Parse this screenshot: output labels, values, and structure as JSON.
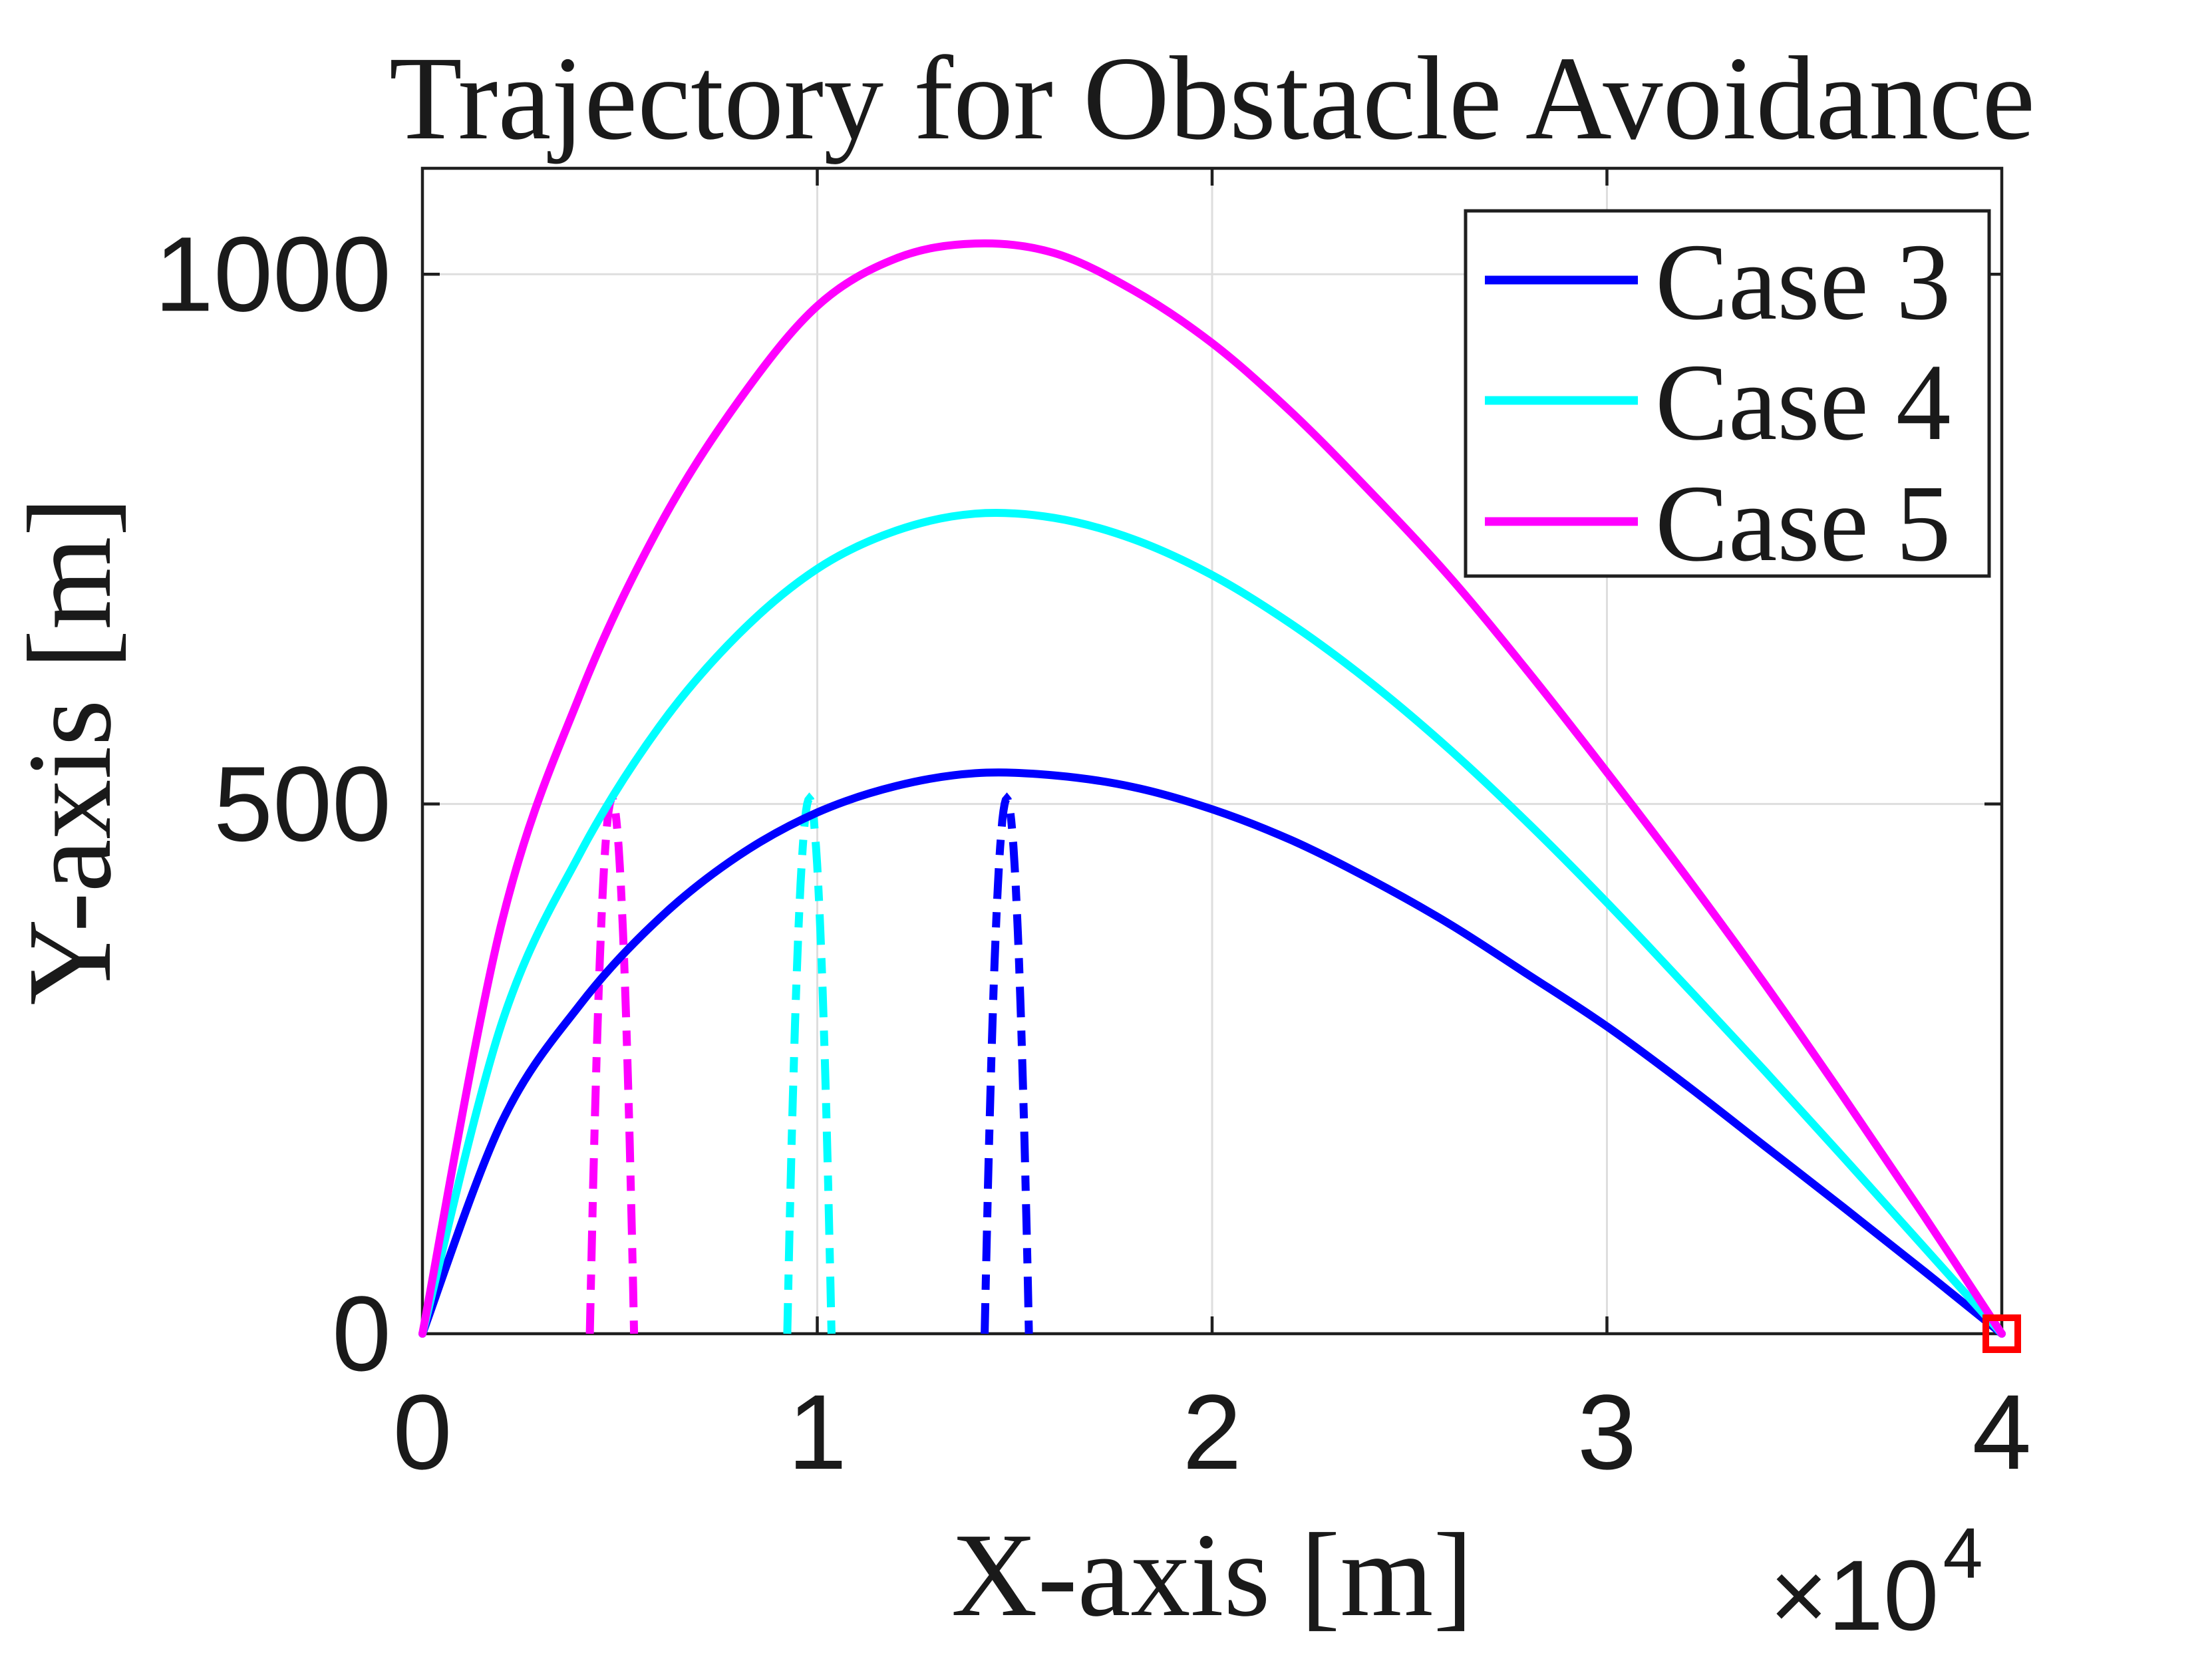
{
  "figure": {
    "title": "Trajectory for Obstacle Avoidance",
    "background_color": "#FFFFFF"
  },
  "axes": {
    "x": {
      "label": "X-axis [m]",
      "min": 0,
      "max": 40000,
      "tick_values": [
        0,
        10000,
        20000,
        30000,
        40000
      ],
      "tick_labels": [
        "0",
        "1",
        "2",
        "3",
        "4"
      ],
      "multiplier_label": "×10",
      "multiplier_exponent": "4"
    },
    "y": {
      "label": "Y-axis [m]",
      "min": 0,
      "max": 1100,
      "tick_values": [
        0,
        500,
        1000
      ],
      "tick_labels": [
        "0",
        "500",
        "1000"
      ]
    },
    "grid": "on",
    "grid_color": "#DEDEDE",
    "axis_color": "#1F1F1F",
    "text_color": "#1A1A1A"
  },
  "legend": {
    "position": "top-right",
    "border_color": "#1F1F1F",
    "background": "#FFFFFF",
    "entries": [
      {
        "label": "Case 3",
        "color": "#0000FF"
      },
      {
        "label": "Case 4",
        "color": "#00FFFF"
      },
      {
        "label": "Case 5",
        "color": "#FF00FF"
      }
    ]
  },
  "chart_data": {
    "type": "line",
    "title": "Trajectory for Obstacle Avoidance",
    "xlabel": "X-axis [m]",
    "ylabel": "Y-axis [m]",
    "xlim": [
      0,
      40000
    ],
    "ylim": [
      0,
      1100
    ],
    "series": [
      {
        "name": "Case 3",
        "color": "#0000FF",
        "style": "solid",
        "peak": {
          "x": 14800,
          "y": 530
        },
        "points": [
          [
            0,
            0
          ],
          [
            2000,
            199
          ],
          [
            4000,
            311
          ],
          [
            6000,
            392
          ],
          [
            8000,
            451
          ],
          [
            10000,
            492
          ],
          [
            12000,
            517
          ],
          [
            14000,
            529
          ],
          [
            16000,
            527
          ],
          [
            18000,
            516
          ],
          [
            20000,
            495
          ],
          [
            22000,
            466
          ],
          [
            24000,
            429
          ],
          [
            26000,
            387
          ],
          [
            28000,
            339
          ],
          [
            30000,
            290
          ],
          [
            32000,
            235
          ],
          [
            34000,
            177
          ],
          [
            36000,
            119
          ],
          [
            38000,
            60
          ],
          [
            40000,
            0
          ]
        ]
      },
      {
        "name": "Case 4",
        "color": "#00FFFF",
        "style": "solid",
        "peak": {
          "x": 14800,
          "y": 775
        },
        "points": [
          [
            0,
            0
          ],
          [
            2000,
            292
          ],
          [
            4000,
            454
          ],
          [
            6000,
            573
          ],
          [
            8000,
            660
          ],
          [
            10000,
            722
          ],
          [
            12000,
            758
          ],
          [
            14000,
            774
          ],
          [
            16000,
            770
          ],
          [
            18000,
            750
          ],
          [
            20000,
            716
          ],
          [
            22000,
            670
          ],
          [
            24000,
            615
          ],
          [
            26000,
            552
          ],
          [
            28000,
            482
          ],
          [
            30000,
            407
          ],
          [
            32000,
            328
          ],
          [
            34000,
            248
          ],
          [
            36000,
            166
          ],
          [
            38000,
            83
          ],
          [
            40000,
            0
          ]
        ]
      },
      {
        "name": "Case 5",
        "color": "#FF00FF",
        "style": "solid",
        "peak": {
          "x": 14800,
          "y": 1030
        },
        "points": [
          [
            0,
            0
          ],
          [
            2000,
            387
          ],
          [
            4000,
            604
          ],
          [
            6000,
            762
          ],
          [
            8000,
            880
          ],
          [
            10000,
            970
          ],
          [
            12000,
            1015
          ],
          [
            14000,
            1029
          ],
          [
            16000,
            1020
          ],
          [
            18000,
            985
          ],
          [
            20000,
            935
          ],
          [
            22000,
            870
          ],
          [
            24000,
            795
          ],
          [
            26000,
            715
          ],
          [
            28000,
            625
          ],
          [
            30000,
            530
          ],
          [
            32000,
            432
          ],
          [
            34000,
            330
          ],
          [
            36000,
            223
          ],
          [
            38000,
            113
          ],
          [
            40000,
            0
          ]
        ]
      }
    ],
    "obstacles": [
      {
        "case": "Case 5",
        "color": "#FF00FF",
        "style": "dash-dot",
        "center_x": 4800,
        "peak_y": 505,
        "half_width": 560
      },
      {
        "case": "Case 4",
        "color": "#00FFFF",
        "style": "dash-dot",
        "center_x": 9800,
        "peak_y": 505,
        "half_width": 560
      },
      {
        "case": "Case 3",
        "color": "#0000FF",
        "style": "dash-dot",
        "center_x": 14800,
        "peak_y": 505,
        "half_width": 560
      }
    ],
    "end_marker": {
      "x": 40000,
      "y": 0,
      "shape": "open-square",
      "color": "#FF0000"
    }
  }
}
